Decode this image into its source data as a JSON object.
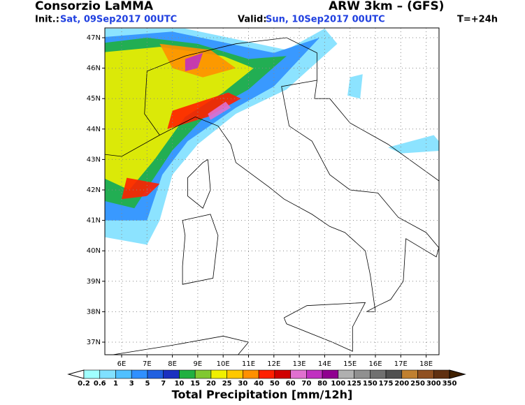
{
  "header": {
    "title": "Consorzio LaMMA",
    "model": "ARW 3km – (GFS)",
    "init_label": "Init.:",
    "init_date": "Sat, 09Sep2017 00UTC",
    "valid_label": "Valid:",
    "valid_date": "Sun, 10Sep2017 00UTC",
    "lead_time": "T=+24h"
  },
  "map": {
    "lon_labels": [
      "6E",
      "7E",
      "8E",
      "9E",
      "10E",
      "11E",
      "12E",
      "13E",
      "14E",
      "15E",
      "16E",
      "17E",
      "18E"
    ],
    "lat_labels": [
      "47N",
      "46N",
      "45N",
      "44N",
      "43N",
      "42N",
      "41N",
      "40N",
      "39N",
      "38N",
      "37N"
    ]
  },
  "colorbar": {
    "title": "Total Precipitation [mm/12h]",
    "labels": [
      "0.2",
      "0.6",
      "1",
      "3",
      "5",
      "7",
      "10",
      "15",
      "20",
      "25",
      "30",
      "40",
      "50",
      "60",
      "70",
      "80",
      "100",
      "125",
      "150",
      "175",
      "200",
      "250",
      "300",
      "350"
    ],
    "colors": [
      "#ffffff",
      "#a0ffff",
      "#80e0ff",
      "#50c0ff",
      "#3090ff",
      "#2060e0",
      "#1a30c0",
      "#20b040",
      "#80c830",
      "#f0f000",
      "#ffc800",
      "#ff9000",
      "#ff2000",
      "#d00000",
      "#e070d0",
      "#c030c0",
      "#900090",
      "#b0b0b0",
      "#909090",
      "#707070",
      "#505050",
      "#c08030",
      "#905020",
      "#603010",
      "#402000"
    ]
  }
}
